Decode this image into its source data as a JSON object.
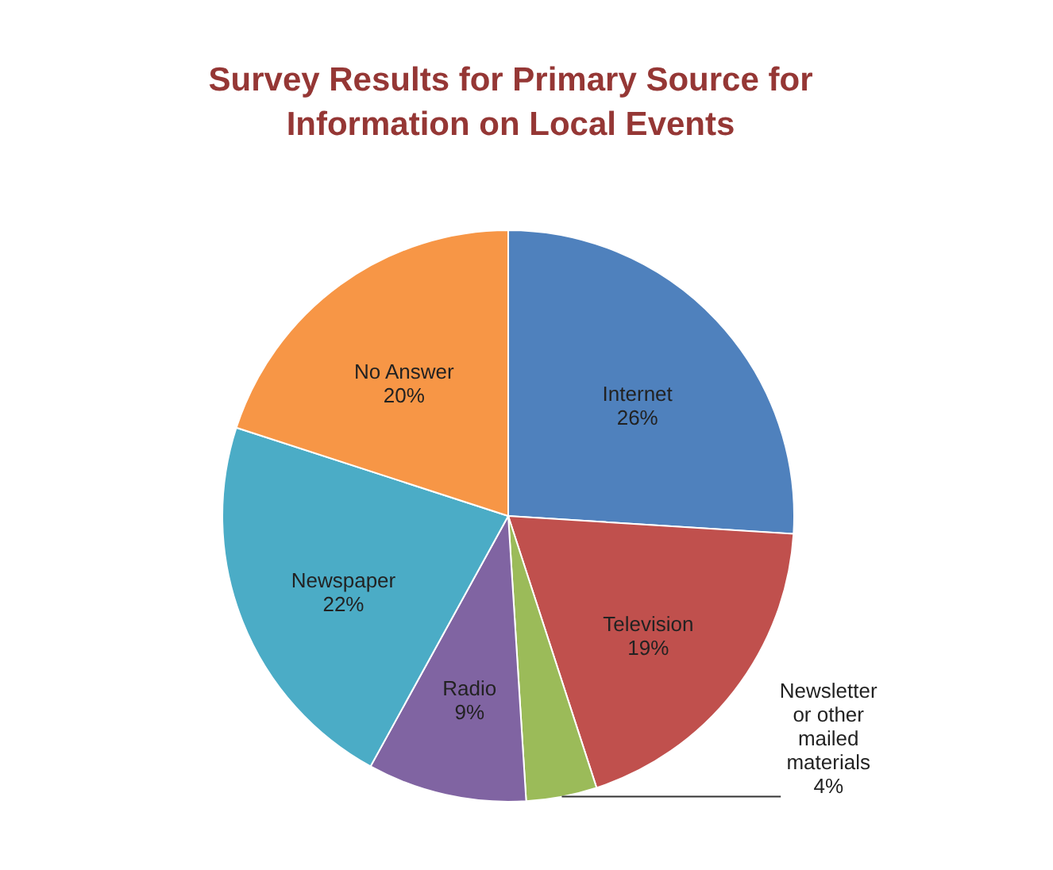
{
  "chart_data": {
    "type": "pie",
    "title": "Survey Results for Primary Source for Information on Local Events",
    "categories": [
      "Internet",
      "Television",
      "Newsletter or other mailed materials",
      "Radio",
      "Newspaper",
      "No Answer"
    ],
    "values": [
      26,
      19,
      4,
      9,
      22,
      20
    ],
    "value_labels": [
      "26%",
      "19%",
      "4%",
      "9%",
      "22%",
      "20%"
    ],
    "colors": [
      "#4f81bd",
      "#c0504d",
      "#9bbb59",
      "#8064a2",
      "#4bacc6",
      "#f79646"
    ]
  }
}
